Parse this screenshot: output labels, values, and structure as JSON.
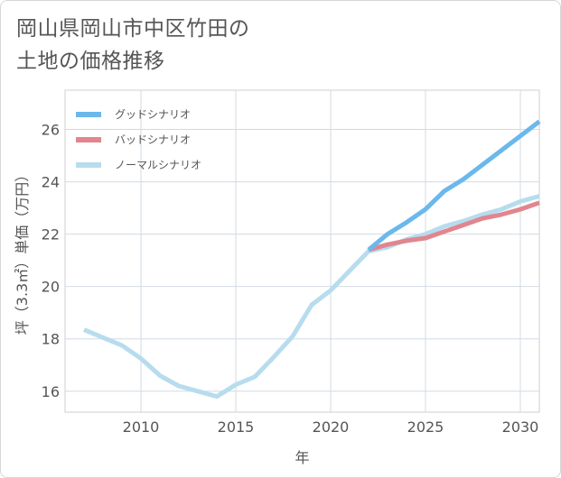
{
  "title_lines": [
    "岡山県岡山市中区竹田の",
    "土地の価格推移"
  ],
  "chart_data": {
    "type": "line",
    "xlabel": "年",
    "ylabel": "坪（3.3㎡）単価（万円）",
    "xlim": [
      2006,
      2031
    ],
    "ylim": [
      15.2,
      27.5
    ],
    "xticks": [
      2010,
      2015,
      2020,
      2025,
      2030
    ],
    "yticks": [
      16,
      18,
      20,
      22,
      24,
      26
    ],
    "grid": true,
    "legend_position": "top-left",
    "series": [
      {
        "name": "グッドシナリオ",
        "color": "#6bb8ec",
        "x": [
          2022,
          2023,
          2024,
          2025,
          2026,
          2027,
          2028,
          2029,
          2030,
          2031
        ],
        "y": [
          21.4,
          22.0,
          22.45,
          22.95,
          23.65,
          24.1,
          24.65,
          25.2,
          25.75,
          26.3
        ]
      },
      {
        "name": "バッドシナリオ",
        "color": "#e0868f",
        "x": [
          2022,
          2023,
          2024,
          2025,
          2026,
          2027,
          2028,
          2029,
          2030,
          2031
        ],
        "y": [
          21.4,
          21.6,
          21.75,
          21.85,
          22.1,
          22.35,
          22.6,
          22.75,
          22.95,
          23.2
        ]
      },
      {
        "name": "ノーマルシナリオ",
        "color": "#b7dcee",
        "x": [
          2007,
          2008,
          2009,
          2010,
          2011,
          2012,
          2013,
          2014,
          2015,
          2016,
          2017,
          2018,
          2019,
          2020,
          2021,
          2022,
          2023,
          2024,
          2025,
          2026,
          2027,
          2028,
          2029,
          2030,
          2031
        ],
        "y": [
          18.35,
          18.05,
          17.75,
          17.25,
          16.6,
          16.2,
          16.0,
          15.8,
          16.25,
          16.55,
          17.3,
          18.1,
          19.3,
          19.85,
          20.6,
          21.35,
          21.5,
          21.8,
          22.0,
          22.3,
          22.5,
          22.75,
          22.95,
          23.25,
          23.45
        ]
      }
    ]
  }
}
